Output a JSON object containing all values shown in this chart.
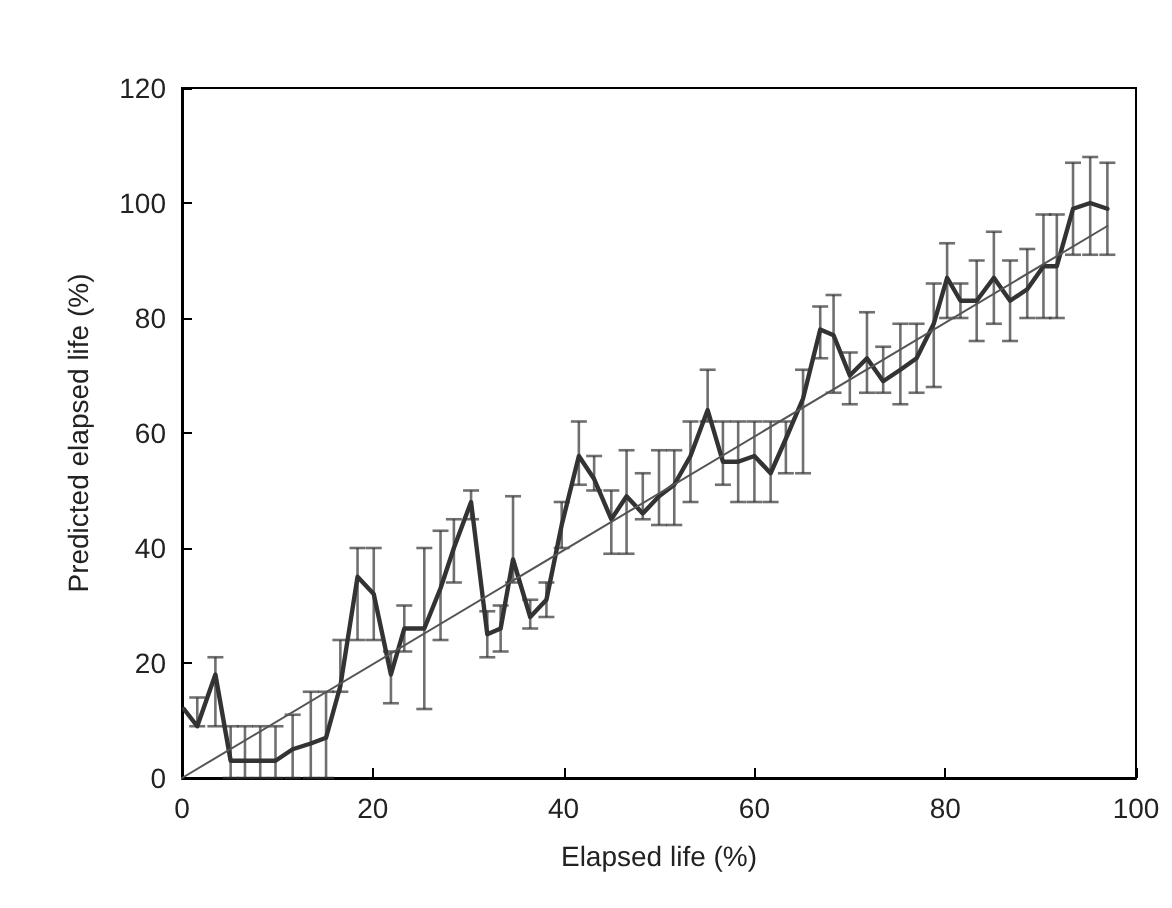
{
  "chart_data": {
    "type": "line",
    "xlabel": "Elapsed life (%)",
    "ylabel": "Predicted elapsed life (%)",
    "xlim": [
      0,
      100
    ],
    "xticks": [
      0,
      20,
      40,
      60,
      80,
      100
    ],
    "ylim": [
      0,
      120
    ],
    "yticks": [
      0,
      20,
      40,
      60,
      80,
      100,
      120
    ],
    "grid": false,
    "marker": "none",
    "line_style": "solid",
    "series": [
      {
        "color": "#333333",
        "x": [
          0.2,
          1.6,
          3.5,
          5.1,
          6.6,
          8.2,
          9.8,
          11.6,
          13.5,
          15.1,
          16.6,
          18.4,
          20.1,
          21.9,
          23.3,
          25.4,
          27.1,
          28.5,
          30.3,
          32,
          33.4,
          34.7,
          36.5,
          38.2,
          39.8,
          41.6,
          43.2,
          45,
          46.6,
          48.3,
          50,
          51.6,
          53.3,
          55.1,
          56.7,
          58.3,
          60,
          61.7,
          63.3,
          65.1,
          66.9,
          68.3,
          70,
          71.8,
          73.5,
          75.3,
          77,
          78.8,
          80.2,
          81.6,
          83.3,
          85.1,
          86.8,
          88.6,
          90.3,
          91.7,
          93.4,
          95.2,
          97
        ],
        "values": [
          12,
          9,
          18,
          3,
          3,
          3,
          3,
          5,
          6,
          7,
          16,
          35,
          32,
          18,
          26,
          26,
          33,
          40,
          48,
          25,
          26,
          38,
          28,
          31,
          44,
          56,
          52,
          45,
          49,
          46,
          49,
          51,
          56,
          64,
          55,
          55,
          56,
          53,
          59,
          66,
          78,
          77,
          70,
          73,
          69,
          71,
          73,
          79,
          87,
          83,
          83,
          87,
          83,
          85,
          89,
          89,
          99,
          100,
          99
        ],
        "errors": [
          null,
          [
            9,
            14
          ],
          [
            9,
            21
          ],
          [
            0,
            9
          ],
          [
            0,
            9
          ],
          [
            0,
            9
          ],
          [
            0,
            9
          ],
          [
            0,
            11
          ],
          [
            0,
            15
          ],
          [
            0,
            15
          ],
          [
            15,
            24
          ],
          [
            24,
            40
          ],
          [
            24,
            40
          ],
          [
            13,
            22
          ],
          [
            22,
            30
          ],
          [
            12,
            40
          ],
          [
            24,
            43
          ],
          [
            34,
            45
          ],
          [
            45,
            50
          ],
          [
            21,
            29
          ],
          [
            22,
            30
          ],
          [
            34,
            49
          ],
          [
            26,
            31
          ],
          [
            28,
            34
          ],
          [
            40,
            48
          ],
          [
            51,
            62
          ],
          [
            50,
            56
          ],
          [
            39,
            50
          ],
          [
            39,
            57
          ],
          [
            45,
            53
          ],
          [
            44,
            57
          ],
          [
            44,
            57
          ],
          [
            48,
            62
          ],
          [
            62,
            71
          ],
          [
            51,
            62
          ],
          [
            48,
            62
          ],
          [
            48,
            62
          ],
          [
            48,
            62
          ],
          [
            53,
            62
          ],
          [
            53,
            71
          ],
          [
            73,
            82
          ],
          [
            67,
            84
          ],
          [
            65,
            74
          ],
          [
            67,
            81
          ],
          [
            67,
            75
          ],
          [
            65,
            79
          ],
          [
            67,
            79
          ],
          [
            68,
            86
          ],
          [
            80,
            93
          ],
          [
            80,
            86
          ],
          [
            76,
            90
          ],
          [
            79,
            95
          ],
          [
            76,
            90
          ],
          [
            80,
            92
          ],
          [
            80,
            98
          ],
          [
            80,
            98
          ],
          [
            91,
            107
          ],
          [
            91,
            108
          ],
          [
            91,
            107
          ]
        ]
      },
      {
        "color": "#555555",
        "x": [
          0,
          97
        ],
        "values": [
          0,
          96
        ]
      }
    ]
  }
}
